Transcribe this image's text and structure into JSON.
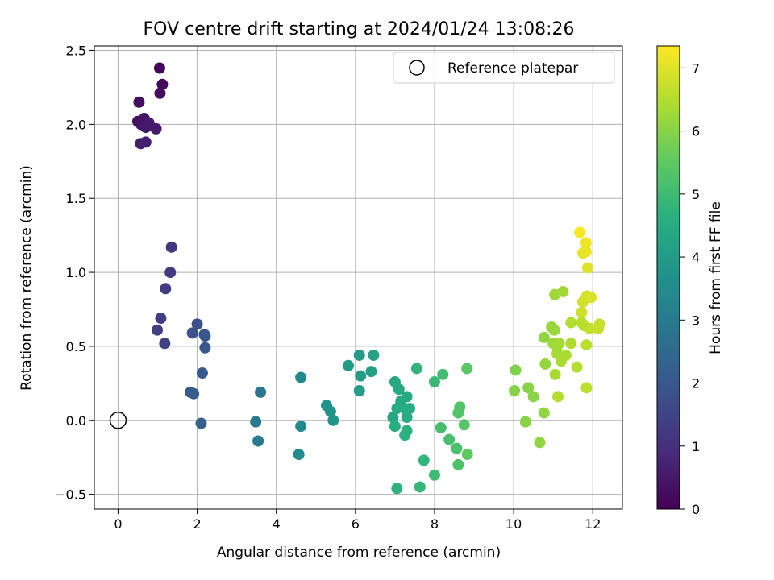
{
  "chart_data": {
    "type": "scatter",
    "title": "FOV centre drift starting at 2024/01/24 13:08:26",
    "xlabel": "Angular distance from reference (arcmin)",
    "ylabel": "Rotation from reference (arcmin)",
    "xlim": [
      -0.6,
      12.75
    ],
    "ylim": [
      -0.6,
      2.53
    ],
    "xticks": [
      0,
      2,
      4,
      6,
      8,
      10,
      12
    ],
    "yticks": [
      -0.5,
      0.0,
      0.5,
      1.0,
      1.5,
      2.0,
      2.5
    ],
    "xtick_labels": [
      "0",
      "2",
      "4",
      "6",
      "8",
      "10",
      "12"
    ],
    "ytick_labels": [
      "−0.5",
      "0.0",
      "0.5",
      "1.0",
      "1.5",
      "2.0",
      "2.5"
    ],
    "grid": true,
    "legend": {
      "position": "top-right",
      "label": "Reference platepar"
    },
    "reference_point": {
      "x": 0,
      "y": 0
    },
    "colorbar": {
      "label": "Hours from first FF file",
      "colormap": "viridis",
      "range": [
        0,
        7.35
      ],
      "ticks": [
        0,
        1,
        2,
        3,
        4,
        5,
        6,
        7
      ],
      "tick_labels": [
        "0",
        "1",
        "2",
        "3",
        "4",
        "5",
        "6",
        "7"
      ]
    },
    "points": [
      {
        "x": 1.05,
        "y": 2.38,
        "c": 0.1
      },
      {
        "x": 1.12,
        "y": 2.27,
        "c": 0.15
      },
      {
        "x": 1.06,
        "y": 2.21,
        "c": 0.2
      },
      {
        "x": 0.53,
        "y": 2.15,
        "c": 0.25
      },
      {
        "x": 0.5,
        "y": 2.02,
        "c": 0.3
      },
      {
        "x": 0.58,
        "y": 2.0,
        "c": 0.35
      },
      {
        "x": 0.66,
        "y": 2.04,
        "c": 0.4
      },
      {
        "x": 0.7,
        "y": 1.98,
        "c": 0.45
      },
      {
        "x": 0.78,
        "y": 2.01,
        "c": 0.5
      },
      {
        "x": 0.96,
        "y": 1.97,
        "c": 0.55
      },
      {
        "x": 0.57,
        "y": 1.87,
        "c": 0.6
      },
      {
        "x": 0.7,
        "y": 1.88,
        "c": 0.65
      },
      {
        "x": 1.35,
        "y": 1.17,
        "c": 1.2
      },
      {
        "x": 1.32,
        "y": 1.0,
        "c": 1.25
      },
      {
        "x": 1.2,
        "y": 0.89,
        "c": 1.3
      },
      {
        "x": 1.08,
        "y": 0.69,
        "c": 1.35
      },
      {
        "x": 0.99,
        "y": 0.61,
        "c": 1.4
      },
      {
        "x": 1.18,
        "y": 0.52,
        "c": 1.45
      },
      {
        "x": 2.0,
        "y": 0.65,
        "c": 1.8
      },
      {
        "x": 1.88,
        "y": 0.59,
        "c": 1.85
      },
      {
        "x": 2.18,
        "y": 0.58,
        "c": 1.9
      },
      {
        "x": 2.2,
        "y": 0.57,
        "c": 1.95
      },
      {
        "x": 2.2,
        "y": 0.49,
        "c": 2.0
      },
      {
        "x": 2.13,
        "y": 0.32,
        "c": 2.05
      },
      {
        "x": 1.83,
        "y": 0.19,
        "c": 2.1
      },
      {
        "x": 1.91,
        "y": 0.18,
        "c": 2.15
      },
      {
        "x": 2.1,
        "y": -0.02,
        "c": 2.2
      },
      {
        "x": 3.6,
        "y": 0.19,
        "c": 2.9
      },
      {
        "x": 3.48,
        "y": -0.01,
        "c": 2.95
      },
      {
        "x": 3.54,
        "y": -0.14,
        "c": 3.0
      },
      {
        "x": 4.62,
        "y": 0.29,
        "c": 3.4
      },
      {
        "x": 4.62,
        "y": -0.04,
        "c": 3.45
      },
      {
        "x": 4.57,
        "y": -0.23,
        "c": 3.5
      },
      {
        "x": 5.27,
        "y": 0.1,
        "c": 3.7
      },
      {
        "x": 5.37,
        "y": 0.06,
        "c": 3.75
      },
      {
        "x": 5.44,
        "y": 0.0,
        "c": 3.8
      },
      {
        "x": 5.82,
        "y": 0.37,
        "c": 3.95
      },
      {
        "x": 6.1,
        "y": 0.44,
        "c": 4.0
      },
      {
        "x": 6.13,
        "y": 0.3,
        "c": 4.05
      },
      {
        "x": 6.1,
        "y": 0.2,
        "c": 4.1
      },
      {
        "x": 6.4,
        "y": 0.33,
        "c": 4.15
      },
      {
        "x": 6.46,
        "y": 0.44,
        "c": 4.2
      },
      {
        "x": 6.95,
        "y": 0.02,
        "c": 4.35
      },
      {
        "x": 7.0,
        "y": 0.26,
        "c": 4.4
      },
      {
        "x": 7.1,
        "y": 0.21,
        "c": 4.42
      },
      {
        "x": 7.3,
        "y": 0.16,
        "c": 4.45
      },
      {
        "x": 7.15,
        "y": 0.13,
        "c": 4.47
      },
      {
        "x": 7.05,
        "y": 0.08,
        "c": 4.5
      },
      {
        "x": 7.25,
        "y": 0.08,
        "c": 4.52
      },
      {
        "x": 7.37,
        "y": 0.08,
        "c": 4.55
      },
      {
        "x": 7.3,
        "y": 0.02,
        "c": 4.57
      },
      {
        "x": 7.0,
        "y": -0.04,
        "c": 4.6
      },
      {
        "x": 7.3,
        "y": -0.07,
        "c": 4.62
      },
      {
        "x": 7.25,
        "y": -0.1,
        "c": 4.65
      },
      {
        "x": 7.05,
        "y": -0.46,
        "c": 4.7
      },
      {
        "x": 7.55,
        "y": 0.35,
        "c": 4.75
      },
      {
        "x": 7.73,
        "y": -0.27,
        "c": 4.8
      },
      {
        "x": 7.63,
        "y": -0.45,
        "c": 4.85
      },
      {
        "x": 8.0,
        "y": 0.26,
        "c": 4.95
      },
      {
        "x": 8.0,
        "y": -0.37,
        "c": 5.0
      },
      {
        "x": 8.21,
        "y": 0.31,
        "c": 5.05
      },
      {
        "x": 8.16,
        "y": -0.05,
        "c": 5.1
      },
      {
        "x": 8.37,
        "y": -0.13,
        "c": 5.15
      },
      {
        "x": 8.56,
        "y": -0.19,
        "c": 5.2
      },
      {
        "x": 8.6,
        "y": -0.3,
        "c": 5.25
      },
      {
        "x": 8.64,
        "y": 0.09,
        "c": 5.3
      },
      {
        "x": 8.6,
        "y": 0.05,
        "c": 5.35
      },
      {
        "x": 8.75,
        "y": -0.03,
        "c": 5.4
      },
      {
        "x": 8.82,
        "y": 0.35,
        "c": 5.45
      },
      {
        "x": 8.83,
        "y": -0.23,
        "c": 5.5
      },
      {
        "x": 10.05,
        "y": 0.34,
        "c": 5.9
      },
      {
        "x": 10.02,
        "y": 0.2,
        "c": 5.95
      },
      {
        "x": 10.37,
        "y": 0.22,
        "c": 6.0
      },
      {
        "x": 10.3,
        "y": -0.01,
        "c": 6.02
      },
      {
        "x": 10.5,
        "y": 0.16,
        "c": 6.05
      },
      {
        "x": 10.66,
        "y": -0.15,
        "c": 6.08
      },
      {
        "x": 10.77,
        "y": 0.05,
        "c": 6.1
      },
      {
        "x": 10.77,
        "y": 0.56,
        "c": 6.12
      },
      {
        "x": 10.8,
        "y": 0.38,
        "c": 6.15
      },
      {
        "x": 10.96,
        "y": 0.63,
        "c": 6.18
      },
      {
        "x": 11.03,
        "y": 0.61,
        "c": 6.2
      },
      {
        "x": 11.0,
        "y": 0.52,
        "c": 6.22
      },
      {
        "x": 11.04,
        "y": 0.85,
        "c": 6.25
      },
      {
        "x": 11.25,
        "y": 0.87,
        "c": 6.28
      },
      {
        "x": 11.1,
        "y": 0.5,
        "c": 6.3
      },
      {
        "x": 11.15,
        "y": 0.52,
        "c": 6.32
      },
      {
        "x": 11.1,
        "y": 0.45,
        "c": 6.35
      },
      {
        "x": 11.2,
        "y": 0.4,
        "c": 6.38
      },
      {
        "x": 11.05,
        "y": 0.31,
        "c": 6.4
      },
      {
        "x": 11.32,
        "y": 0.44,
        "c": 6.42
      },
      {
        "x": 11.45,
        "y": 0.52,
        "c": 6.45
      },
      {
        "x": 11.45,
        "y": 0.66,
        "c": 6.48
      },
      {
        "x": 11.12,
        "y": 0.16,
        "c": 6.5
      },
      {
        "x": 11.6,
        "y": 0.36,
        "c": 6.52
      },
      {
        "x": 11.72,
        "y": 0.66,
        "c": 6.55
      },
      {
        "x": 11.78,
        "y": 0.64,
        "c": 6.58
      },
      {
        "x": 11.84,
        "y": 0.51,
        "c": 6.6
      },
      {
        "x": 11.84,
        "y": 0.22,
        "c": 6.62
      },
      {
        "x": 11.93,
        "y": 0.62,
        "c": 6.65
      },
      {
        "x": 12.14,
        "y": 0.62,
        "c": 6.68
      },
      {
        "x": 12.17,
        "y": 0.65,
        "c": 6.7
      },
      {
        "x": 11.72,
        "y": 0.73,
        "c": 6.8
      },
      {
        "x": 11.75,
        "y": 0.8,
        "c": 6.85
      },
      {
        "x": 11.85,
        "y": 0.84,
        "c": 6.88
      },
      {
        "x": 11.96,
        "y": 0.83,
        "c": 6.92
      },
      {
        "x": 11.87,
        "y": 1.03,
        "c": 7.0
      },
      {
        "x": 11.75,
        "y": 1.13,
        "c": 7.05
      },
      {
        "x": 11.83,
        "y": 1.14,
        "c": 7.1
      },
      {
        "x": 11.83,
        "y": 1.2,
        "c": 7.2
      },
      {
        "x": 11.67,
        "y": 1.27,
        "c": 7.3
      }
    ]
  }
}
